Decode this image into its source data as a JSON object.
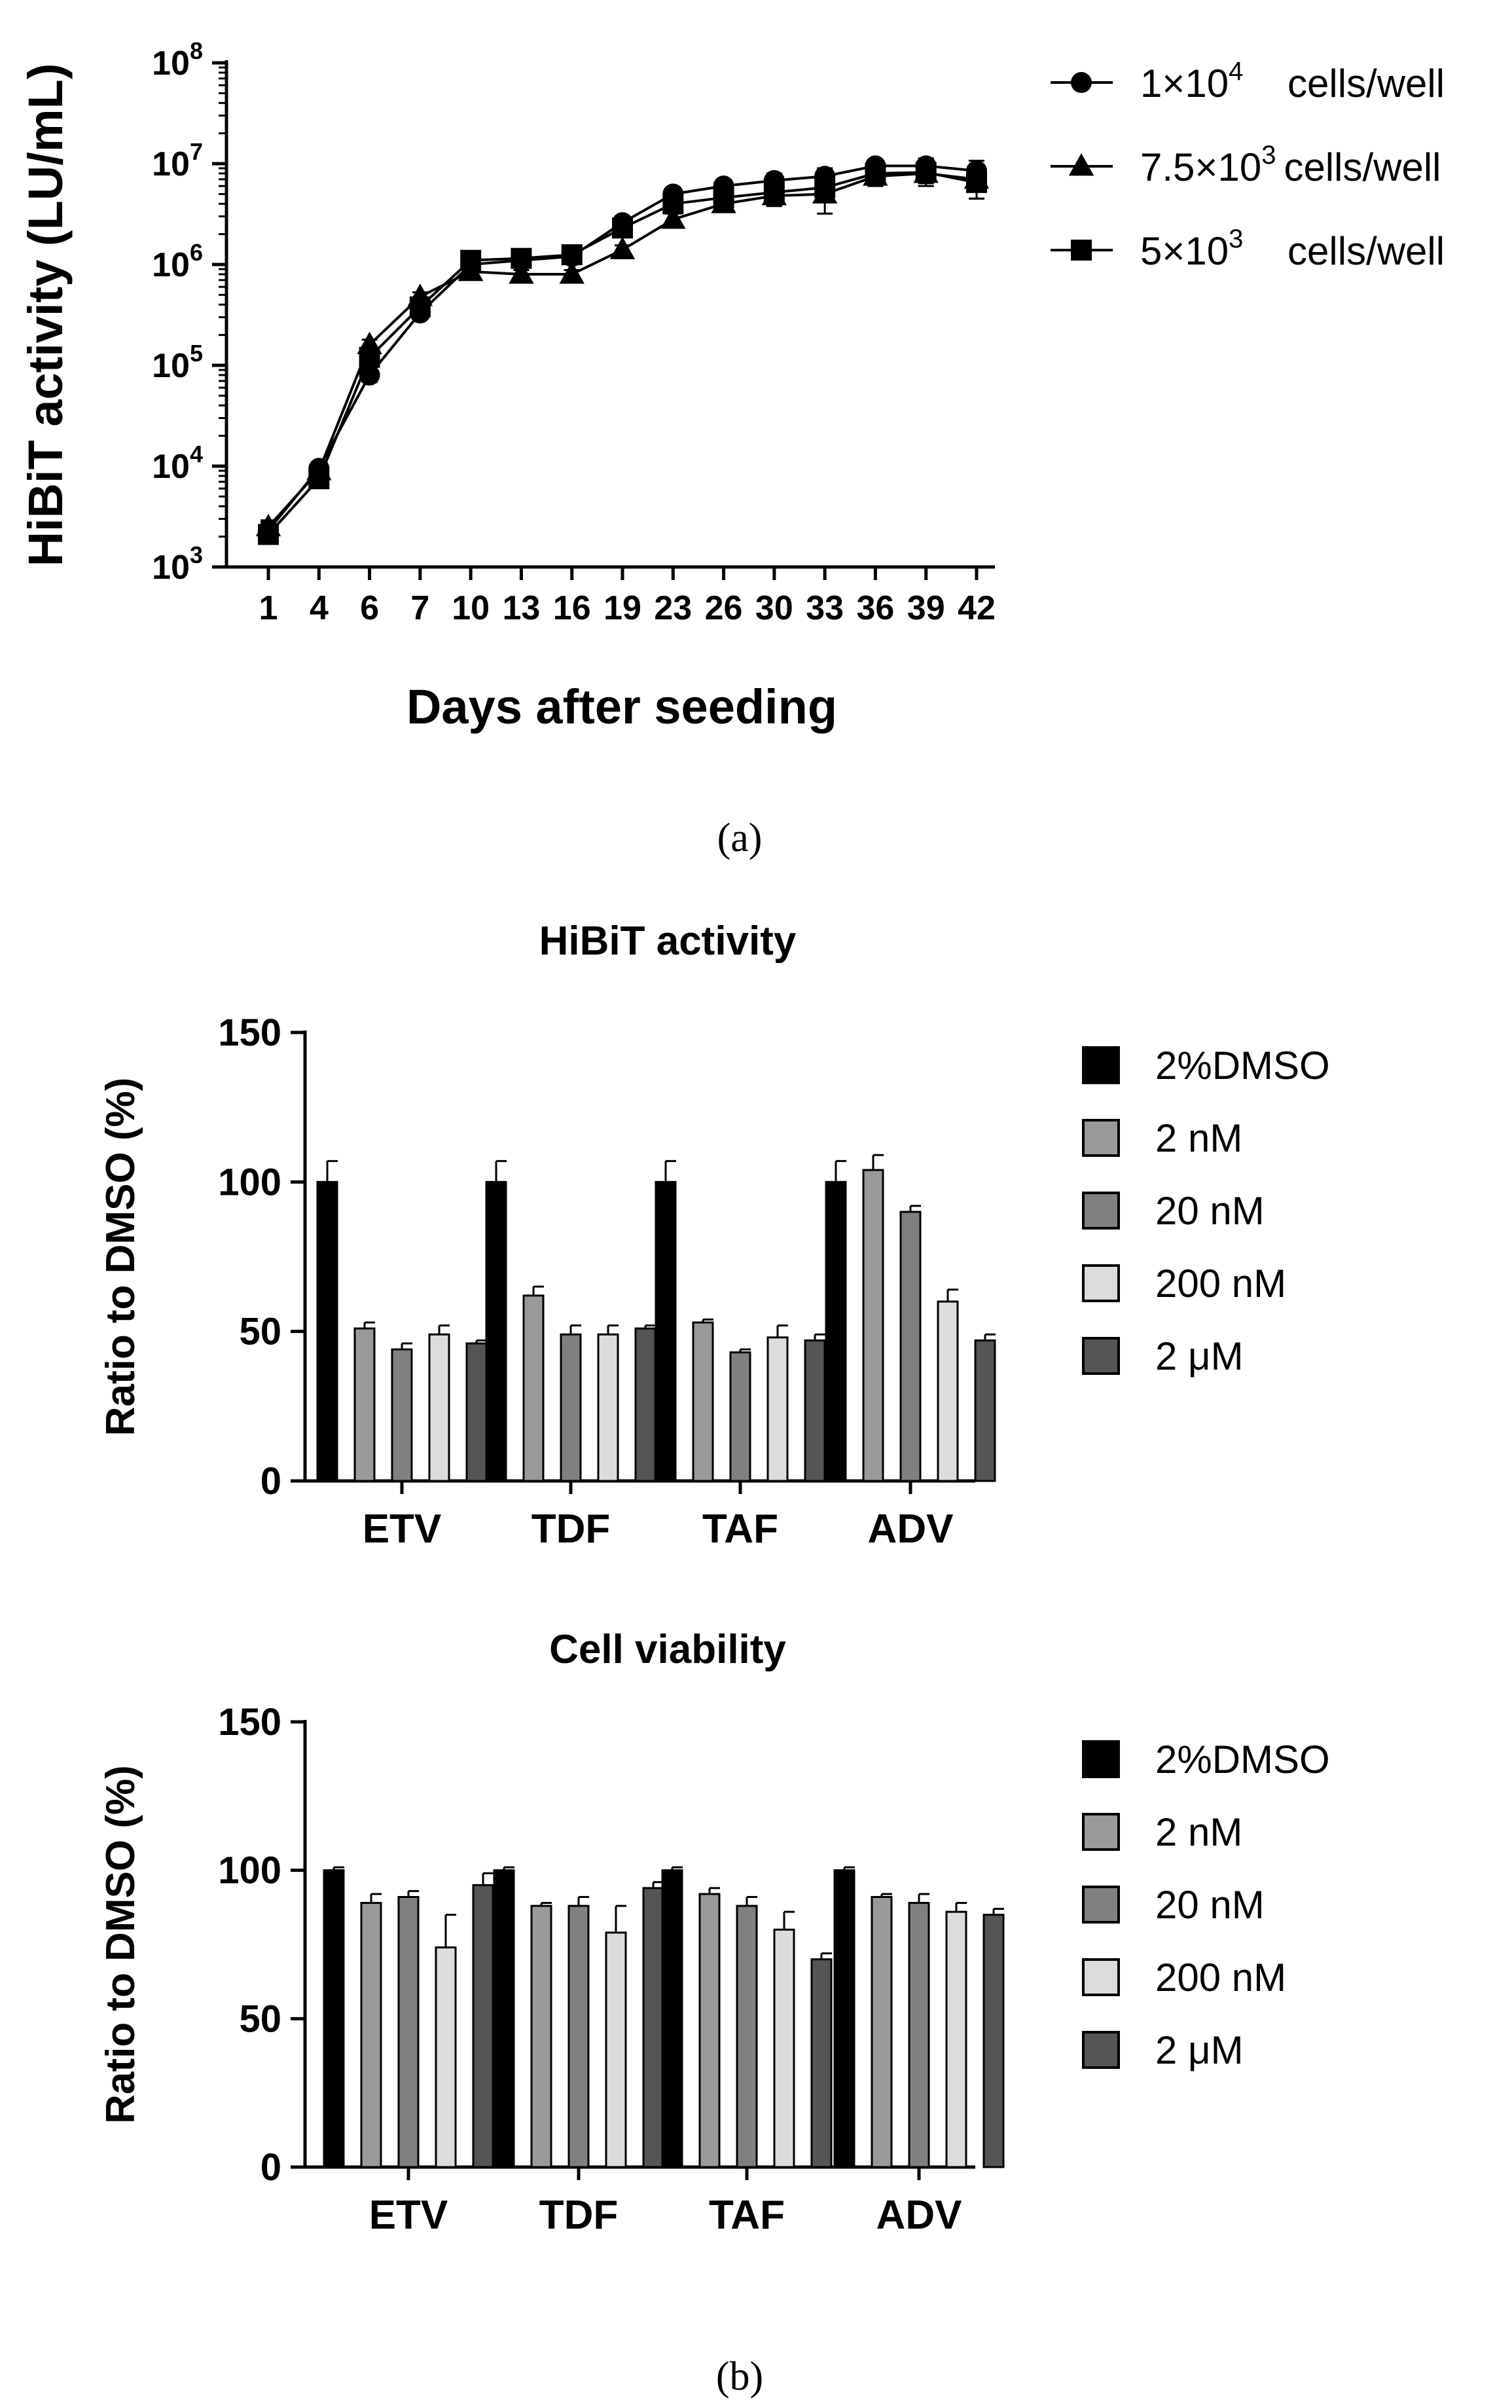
{
  "chart_data": [
    {
      "type": "line",
      "panel_label": "(a)",
      "xlabel": "Days after seeding",
      "ylabel": "HiBiT activity (LU/mL)",
      "yscale": "log",
      "ylim": [
        1000,
        100000000
      ],
      "yticks": [
        {
          "base": "10",
          "exp": "3"
        },
        {
          "base": "10",
          "exp": "4"
        },
        {
          "base": "10",
          "exp": "5"
        },
        {
          "base": "10",
          "exp": "6"
        },
        {
          "base": "10",
          "exp": "7"
        },
        {
          "base": "10",
          "exp": "8"
        }
      ],
      "categories": [
        "1",
        "4",
        "6",
        "7",
        "10",
        "13",
        "16",
        "19",
        "23",
        "26",
        "30",
        "33",
        "36",
        "39",
        "42"
      ],
      "series": [
        {
          "name": "1×10^4 cells/well",
          "legend_main": "1×10",
          "legend_sup": "4",
          "legend_tail": "cells/well",
          "marker": "circle",
          "values": [
            2300,
            9500,
            80000,
            330000,
            1000000,
            1100000,
            1200000,
            2600000,
            5000000,
            6000000,
            6800000,
            7500000,
            9500000,
            9500000,
            8500000
          ],
          "errors": [
            500,
            1200,
            12000,
            40000,
            80000,
            90000,
            100000,
            300000,
            800000,
            900000,
            1200000,
            1500000,
            1500000,
            1800000,
            2200000
          ]
        },
        {
          "name": "7.5×10^3 cells/well",
          "legend_main": "7.5×10",
          "legend_sup": "3",
          "legend_tail": "cells/well",
          "marker": "triangle",
          "values": [
            2500,
            9000,
            160000,
            480000,
            850000,
            800000,
            800000,
            1400000,
            2800000,
            4000000,
            4800000,
            5000000,
            7500000,
            8000000,
            7000000
          ],
          "errors": [
            400,
            1000,
            20000,
            50000,
            80000,
            80000,
            80000,
            150000,
            400000,
            600000,
            1000000,
            1800000,
            1500000,
            2000000,
            2500000
          ]
        },
        {
          "name": "5×10^3 cells/well",
          "legend_main": "5×10",
          "legend_sup": "3",
          "legend_tail": "cells/well",
          "marker": "square",
          "values": [
            2100,
            7500,
            120000,
            380000,
            1100000,
            1150000,
            1250000,
            2300000,
            4000000,
            4600000,
            5200000,
            5800000,
            8000000,
            8200000,
            6500000
          ],
          "errors": [
            400,
            900,
            15000,
            40000,
            90000,
            90000,
            100000,
            250000,
            600000,
            700000,
            1000000,
            1200000,
            1500000,
            1800000,
            2000000
          ]
        }
      ]
    },
    {
      "type": "bar",
      "title": "HiBiT activity",
      "ylabel": "Ratio to DMSO (%)",
      "ylim": [
        0,
        150
      ],
      "yticks": [
        0,
        50,
        100,
        150
      ],
      "categories": [
        "ETV",
        "TDF",
        "TAF",
        "ADV"
      ],
      "series": [
        {
          "name": "2%DMSO",
          "color": "#000000",
          "values": [
            100,
            100,
            100,
            100
          ],
          "errors": [
            7,
            7,
            7,
            7
          ]
        },
        {
          "name": "2 nM",
          "color": "#9a9a9a",
          "values": [
            51,
            62,
            53,
            104
          ],
          "errors": [
            2,
            3,
            1,
            5
          ]
        },
        {
          "name": "20 nM",
          "color": "#808080",
          "values": [
            44,
            49,
            43,
            90
          ],
          "errors": [
            2,
            3,
            1,
            2
          ]
        },
        {
          "name": "200 nM",
          "color": "#dcdcdc",
          "values": [
            49,
            49,
            48,
            60
          ],
          "errors": [
            3,
            3,
            4,
            4
          ]
        },
        {
          "name": "2 μM",
          "color": "#555555",
          "values": [
            46,
            51,
            47,
            47
          ],
          "errors": [
            1,
            1,
            2,
            2
          ]
        }
      ]
    },
    {
      "type": "bar",
      "title": "Cell viability",
      "panel_label": "(b)",
      "ylabel": "Ratio to DMSO (%)",
      "ylim": [
        0,
        150
      ],
      "yticks": [
        0,
        50,
        100,
        150
      ],
      "categories": [
        "ETV",
        "TDF",
        "TAF",
        "ADV"
      ],
      "series": [
        {
          "name": "2%DMSO",
          "color": "#000000",
          "values": [
            100,
            100,
            100,
            100
          ],
          "errors": [
            1,
            1,
            1,
            1
          ]
        },
        {
          "name": "2 nM",
          "color": "#9a9a9a",
          "values": [
            89,
            88,
            92,
            91
          ],
          "errors": [
            3,
            1,
            2,
            1
          ]
        },
        {
          "name": "20 nM",
          "color": "#808080",
          "values": [
            91,
            88,
            88,
            89
          ],
          "errors": [
            2,
            3,
            3,
            3
          ]
        },
        {
          "name": "200 nM",
          "color": "#dcdcdc",
          "values": [
            74,
            79,
            80,
            86
          ],
          "errors": [
            11,
            9,
            6,
            3
          ]
        },
        {
          "name": "2 μM",
          "color": "#555555",
          "values": [
            95,
            94,
            70,
            85
          ],
          "errors": [
            4,
            2,
            2,
            2
          ]
        }
      ]
    }
  ]
}
